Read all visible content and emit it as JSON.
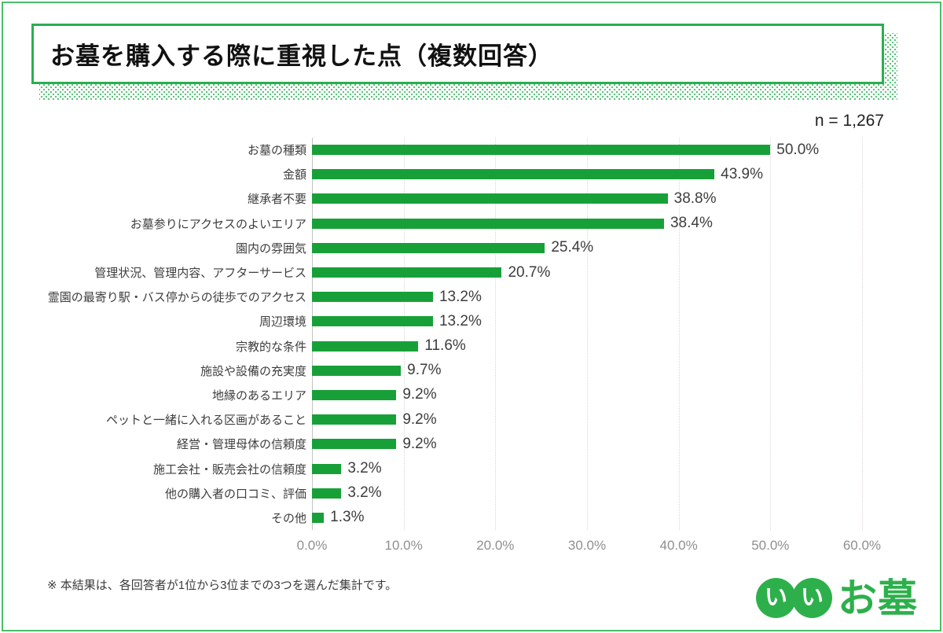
{
  "header": {
    "title": "お墓を購入する際に重視した点（複数回答）"
  },
  "sample_size_label": "n = 1,267",
  "chart_data": {
    "type": "bar",
    "orientation": "horizontal",
    "title": "お墓を購入する際に重視した点（複数回答）",
    "categories": [
      "お墓の種類",
      "金額",
      "継承者不要",
      "お墓参りにアクセスのよいエリア",
      "園内の雰囲気",
      "管理状況、管理内容、アフターサービス",
      "霊園の最寄り駅・バス停からの徒歩でのアクセス",
      "周辺環境",
      "宗教的な条件",
      "施設や設備の充実度",
      "地縁のあるエリア",
      "ペットと一緒に入れる区画があること",
      "経営・管理母体の信頼度",
      "施工会社・販売会社の信頼度",
      "他の購入者の口コミ、評価",
      "その他"
    ],
    "values": [
      50.0,
      43.9,
      38.8,
      38.4,
      25.4,
      20.7,
      13.2,
      13.2,
      11.6,
      9.7,
      9.2,
      9.2,
      9.2,
      3.2,
      3.2,
      1.3
    ],
    "value_labels": [
      "50.0%",
      "43.9%",
      "38.8%",
      "38.4%",
      "25.4%",
      "20.7%",
      "13.2%",
      "13.2%",
      "11.6%",
      "9.7%",
      "9.2%",
      "9.2%",
      "9.2%",
      "3.2%",
      "3.2%",
      "1.3%"
    ],
    "xlim": [
      0,
      60
    ],
    "x_ticks": [
      0,
      10,
      20,
      30,
      40,
      50,
      60
    ],
    "x_tick_labels": [
      "0.0%",
      "10.0%",
      "20.0%",
      "30.0%",
      "40.0%",
      "50.0%",
      "60.0%"
    ],
    "bar_color": "#18A038",
    "grid": true,
    "legend": false
  },
  "footer": {
    "note": "※ 本結果は、各回答者が1位から3位までの3つを選んだ集計です。"
  },
  "logo": {
    "circle_chars": [
      "い",
      "い"
    ],
    "text": "お墓",
    "color": "#2DB04B"
  },
  "colors": {
    "bar_green": "#18A038",
    "brand_green": "#2DB04B",
    "title_border_green": "#2BAE4F",
    "frame_green": "#4CBD6A",
    "halftone_green": "#58C379"
  }
}
